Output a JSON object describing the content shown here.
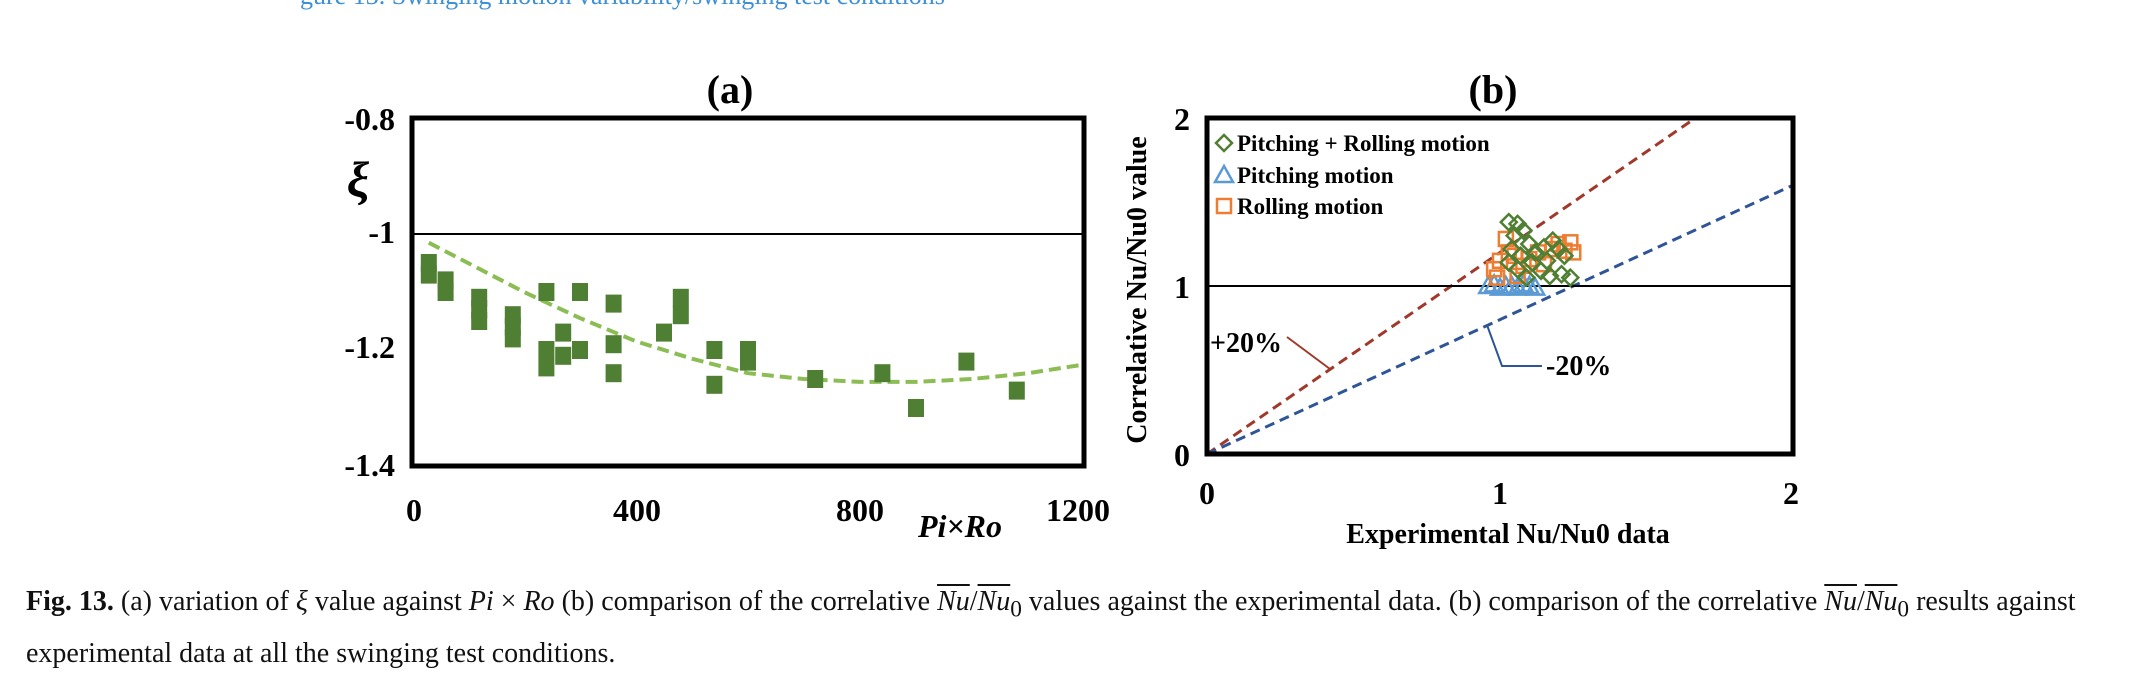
{
  "header_fragment": "gure 13. Swinging motion variability/swinging test conditions",
  "chart_data": [
    {
      "id": "a",
      "type": "scatter",
      "title": "(a)",
      "xlabel": "Pi×Ro",
      "ylabel": "ξ",
      "xlim": [
        0,
        1200
      ],
      "ylim": [
        -1.4,
        -0.8
      ],
      "xticks": [
        "0",
        "400",
        "800",
        "1200"
      ],
      "yticks": [
        "-0.8",
        "-1",
        "-1.2",
        "-1.4"
      ],
      "reference_line_y": -1,
      "marker_color": "#4f7f33",
      "fit_color": "#8cbd55",
      "points": [
        [
          30,
          -1.05
        ],
        [
          30,
          -1.07
        ],
        [
          60,
          -1.08
        ],
        [
          60,
          -1.1
        ],
        [
          120,
          -1.11
        ],
        [
          120,
          -1.13
        ],
        [
          120,
          -1.15
        ],
        [
          180,
          -1.14
        ],
        [
          180,
          -1.16
        ],
        [
          180,
          -1.18
        ],
        [
          240,
          -1.1
        ],
        [
          240,
          -1.2
        ],
        [
          240,
          -1.23
        ],
        [
          270,
          -1.17
        ],
        [
          270,
          -1.21
        ],
        [
          300,
          -1.1
        ],
        [
          300,
          -1.2
        ],
        [
          360,
          -1.12
        ],
        [
          360,
          -1.19
        ],
        [
          360,
          -1.24
        ],
        [
          450,
          -1.17
        ],
        [
          480,
          -1.11
        ],
        [
          480,
          -1.14
        ],
        [
          540,
          -1.2
        ],
        [
          540,
          -1.26
        ],
        [
          600,
          -1.2
        ],
        [
          600,
          -1.22
        ],
        [
          720,
          -1.25
        ],
        [
          840,
          -1.24
        ],
        [
          900,
          -1.3
        ],
        [
          990,
          -1.22
        ],
        [
          1080,
          -1.27
        ]
      ],
      "fit_curve": [
        [
          30,
          -1.015
        ],
        [
          100,
          -1.05
        ],
        [
          200,
          -1.1
        ],
        [
          300,
          -1.145
        ],
        [
          400,
          -1.185
        ],
        [
          500,
          -1.215
        ],
        [
          600,
          -1.24
        ],
        [
          700,
          -1.25
        ],
        [
          800,
          -1.255
        ],
        [
          900,
          -1.255
        ],
        [
          1000,
          -1.25
        ],
        [
          1100,
          -1.24
        ],
        [
          1200,
          -1.225
        ]
      ]
    },
    {
      "id": "b",
      "type": "scatter",
      "title": "(b)",
      "xlabel": "Experimental Nu/Nu0 data",
      "ylabel": "Correlative Nu/Nu0 value",
      "xlim": [
        0,
        2
      ],
      "ylim": [
        0,
        2
      ],
      "xticks": [
        "0",
        "1",
        "2"
      ],
      "yticks": [
        "0",
        "1",
        "2"
      ],
      "reference_line_y": 1,
      "legend": [
        "Pitching + Rolling motion",
        "Pitching motion",
        "Rolling motion"
      ],
      "legend_colors": [
        "#4f7f33",
        "#5b9bd5",
        "#ed7d31"
      ],
      "plus20_label": "+20%",
      "minus20_label": "-20%",
      "plus20_color": "#a0392b",
      "minus20_color": "#2f5597",
      "series": [
        {
          "name": "Pitching + Rolling motion",
          "marker": "diamond",
          "points": [
            [
              1.03,
              1.38
            ],
            [
              1.06,
              1.37
            ],
            [
              1.08,
              1.33
            ],
            [
              1.05,
              1.3
            ],
            [
              1.1,
              1.25
            ],
            [
              1.04,
              1.22
            ],
            [
              1.07,
              1.18
            ],
            [
              1.12,
              1.2
            ],
            [
              1.15,
              1.23
            ],
            [
              1.18,
              1.27
            ],
            [
              1.2,
              1.22
            ],
            [
              1.22,
              1.18
            ],
            [
              1.06,
              1.1
            ],
            [
              1.09,
              1.05
            ],
            [
              1.14,
              1.09
            ],
            [
              1.17,
              1.06
            ],
            [
              1.21,
              1.07
            ],
            [
              1.24,
              1.05
            ],
            [
              1.03,
              1.14
            ],
            [
              1.11,
              1.14
            ],
            [
              1.16,
              1.15
            ]
          ]
        },
        {
          "name": "Pitching motion",
          "marker": "triangle",
          "points": [
            [
              0.96,
              1.0
            ],
            [
              0.98,
              1.01
            ],
            [
              1.0,
              0.99
            ],
            [
              1.02,
              1.0
            ],
            [
              1.04,
              1.0
            ],
            [
              1.06,
              0.99
            ],
            [
              1.08,
              1.01
            ],
            [
              1.1,
              1.0
            ],
            [
              1.12,
              0.99
            ]
          ]
        },
        {
          "name": "Rolling motion",
          "marker": "square",
          "points": [
            [
              0.98,
              1.1
            ],
            [
              1.0,
              1.15
            ],
            [
              1.02,
              1.28
            ],
            [
              1.03,
              1.2
            ],
            [
              1.05,
              1.18
            ],
            [
              1.08,
              1.12
            ],
            [
              1.1,
              1.16
            ],
            [
              1.13,
              1.2
            ],
            [
              1.15,
              1.13
            ],
            [
              1.18,
              1.22
            ],
            [
              1.2,
              1.25
            ],
            [
              1.22,
              1.21
            ],
            [
              1.24,
              1.26
            ],
            [
              1.25,
              1.2
            ],
            [
              0.99,
              1.05
            ],
            [
              1.06,
              1.06
            ]
          ]
        }
      ],
      "plus20_line": [
        [
          0,
          0
        ],
        [
          1.667,
          2.0
        ]
      ],
      "minus20_line": [
        [
          0,
          0
        ],
        [
          2.0,
          1.6
        ]
      ]
    }
  ],
  "caption": {
    "label": "Fig. 13.",
    "p1": " (a) variation of ",
    "xi": "ξ",
    "p2": " value against ",
    "pi": "Pi",
    "times": " × ",
    "ro": "Ro",
    "p3": " (b) comparison of the correlative ",
    "nu1": "Nu",
    "slash1": "/",
    "nu0_1": "Nu",
    "sub0_1": "0",
    "p4": " values against the experimental data. (b) comparison of the correlative ",
    "nu2": "Nu",
    "slash2": "/",
    "nu0_2": "Nu",
    "sub0_2": "0",
    "p5": " results against experimental data at all the swinging test conditions."
  }
}
